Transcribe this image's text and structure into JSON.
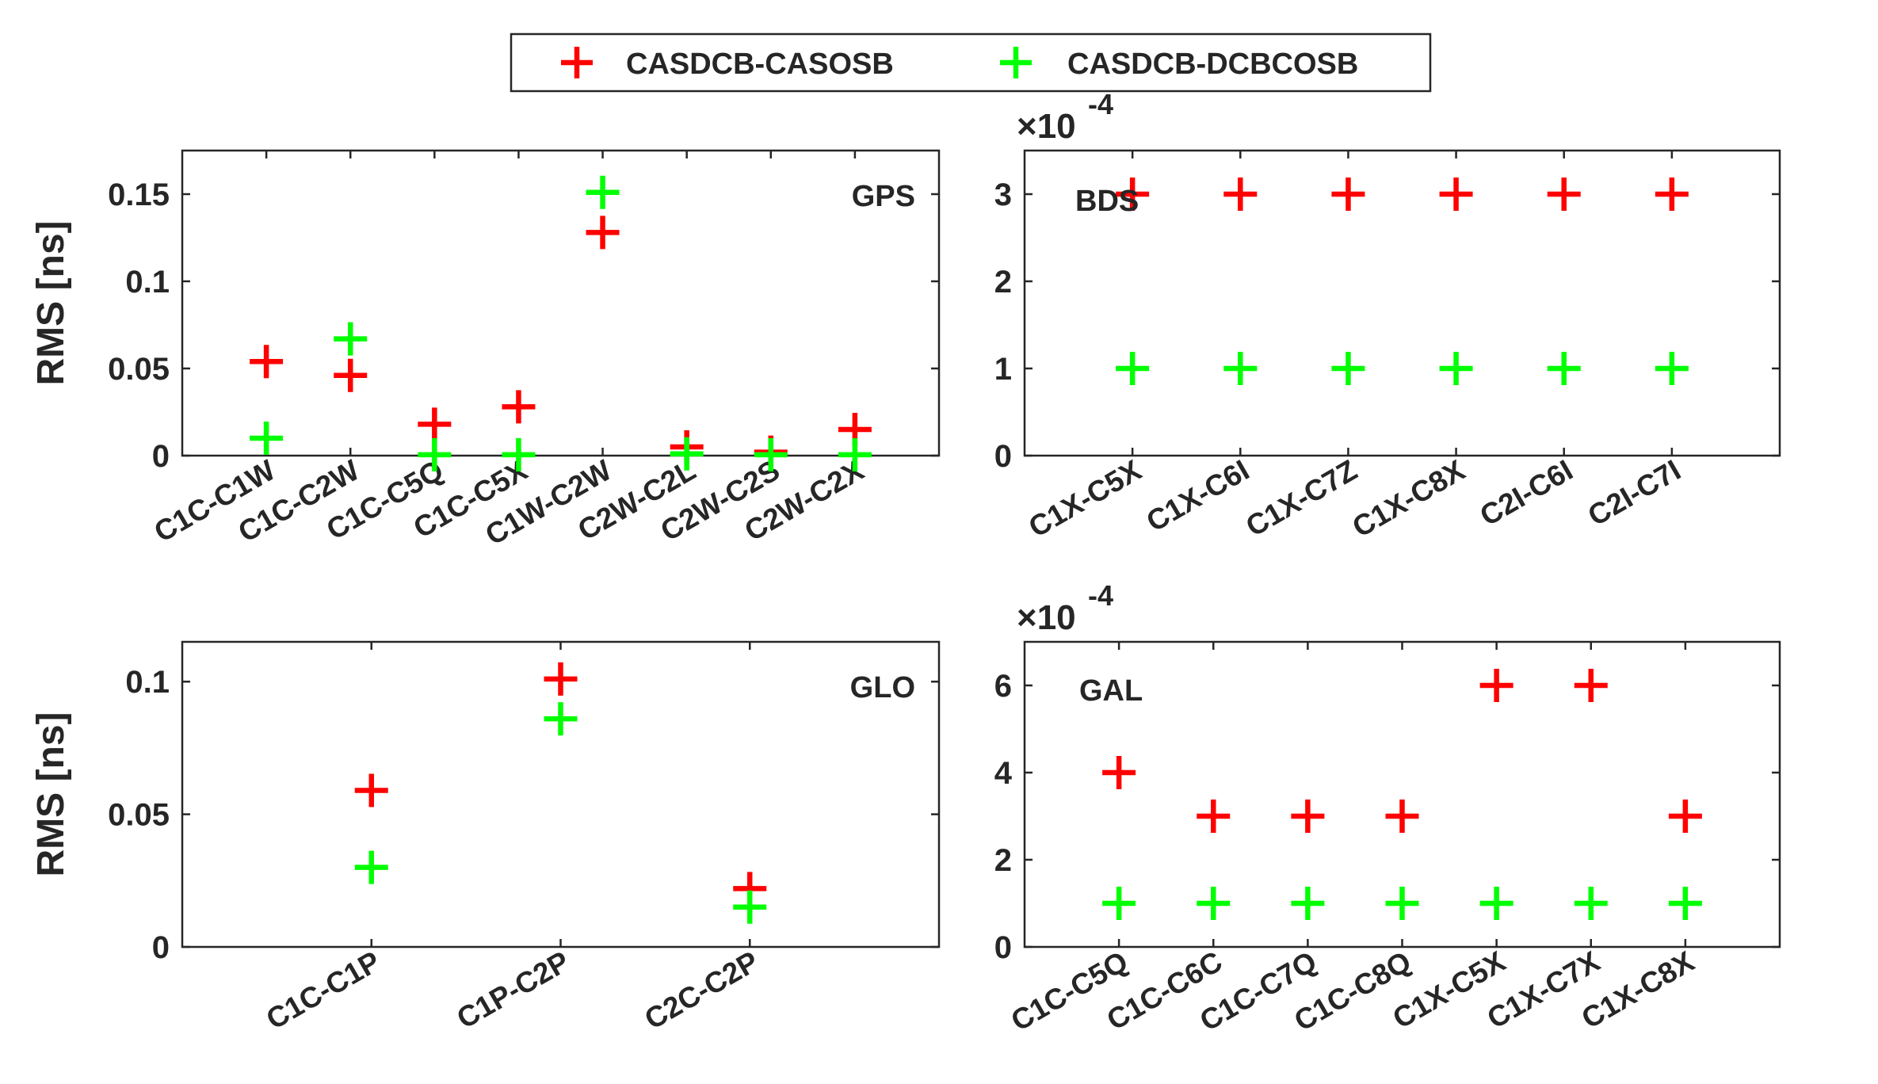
{
  "legend": {
    "items": [
      {
        "label": "CASDCB-CASOSB",
        "color": "#ff0000"
      },
      {
        "label": "CASDCB-DCBCOSB",
        "color": "#00ff00"
      }
    ]
  },
  "chart_data": [
    {
      "type": "scatter",
      "panel": "GPS",
      "categories": [
        "C1C-C1W",
        "C1C-C2W",
        "C1C-C5Q",
        "C1C-C5X",
        "C1W-C2W",
        "C2W-C2L",
        "C2W-C2S",
        "C2W-C2X"
      ],
      "series": [
        {
          "name": "CASDCB-CASOSB",
          "values": [
            0.054,
            0.046,
            0.018,
            0.028,
            0.128,
            0.005,
            0.002,
            0.015
          ]
        },
        {
          "name": "CASDCB-DCBCOSB",
          "values": [
            0.01,
            0.067,
            0.0005,
            0.0005,
            0.151,
            0.001,
            0.0005,
            0.0005
          ]
        }
      ],
      "ylabel": "RMS [ns]",
      "ylim": [
        0,
        0.175
      ],
      "yticks": [
        0,
        0.05,
        0.1,
        0.15
      ],
      "ytick_labels": [
        "0",
        "0.05",
        "0.1",
        "0.15"
      ],
      "exponent_label": ""
    },
    {
      "type": "scatter",
      "panel": "BDS",
      "categories": [
        "C1X-C5X",
        "C1X-C6I",
        "C1X-C7Z",
        "C1X-C8X",
        "C2I-C6I",
        "C2I-C7I"
      ],
      "series": [
        {
          "name": "CASDCB-CASOSB",
          "values": [
            0.0003,
            0.0003,
            0.0003,
            0.0003,
            0.0003,
            0.0003
          ]
        },
        {
          "name": "CASDCB-DCBCOSB",
          "values": [
            0.0001,
            0.0001,
            0.0001,
            0.0001,
            0.0001,
            0.0001
          ]
        }
      ],
      "ylabel": "",
      "ylim": [
        0,
        0.00035
      ],
      "yticks": [
        0,
        0.0001,
        0.0002,
        0.0003
      ],
      "ytick_labels": [
        "0",
        "1",
        "2",
        "3"
      ],
      "exponent_label": "×10"
    },
    {
      "type": "scatter",
      "panel": "GLO",
      "categories": [
        "C1C-C1P",
        "C1P-C2P",
        "C2C-C2P"
      ],
      "series": [
        {
          "name": "CASDCB-CASOSB",
          "values": [
            0.059,
            0.101,
            0.022
          ]
        },
        {
          "name": "CASDCB-DCBCOSB",
          "values": [
            0.03,
            0.086,
            0.015
          ]
        }
      ],
      "ylabel": "RMS [ns]",
      "ylim": [
        0,
        0.115
      ],
      "yticks": [
        0,
        0.05,
        0.1
      ],
      "ytick_labels": [
        "0",
        "0.05",
        "0.1"
      ],
      "exponent_label": ""
    },
    {
      "type": "scatter",
      "panel": "GAL",
      "categories": [
        "C1C-C5Q",
        "C1C-C6C",
        "C1C-C7Q",
        "C1C-C8Q",
        "C1X-C5X",
        "C1X-C7X",
        "C1X-C8X"
      ],
      "series": [
        {
          "name": "CASDCB-CASOSB",
          "values": [
            0.0004,
            0.0003,
            0.0003,
            0.0003,
            0.0006,
            0.0006,
            0.0003
          ]
        },
        {
          "name": "CASDCB-DCBCOSB",
          "values": [
            0.0001,
            0.0001,
            0.0001,
            0.0001,
            0.0001,
            0.0001,
            0.0001
          ]
        }
      ],
      "ylabel": "",
      "ylim": [
        0,
        0.0007
      ],
      "yticks": [
        0,
        0.0002,
        0.0004,
        0.0006
      ],
      "ytick_labels": [
        "0",
        "2",
        "4",
        "6"
      ],
      "exponent_label": "×10"
    }
  ],
  "exponent_power": "-4"
}
